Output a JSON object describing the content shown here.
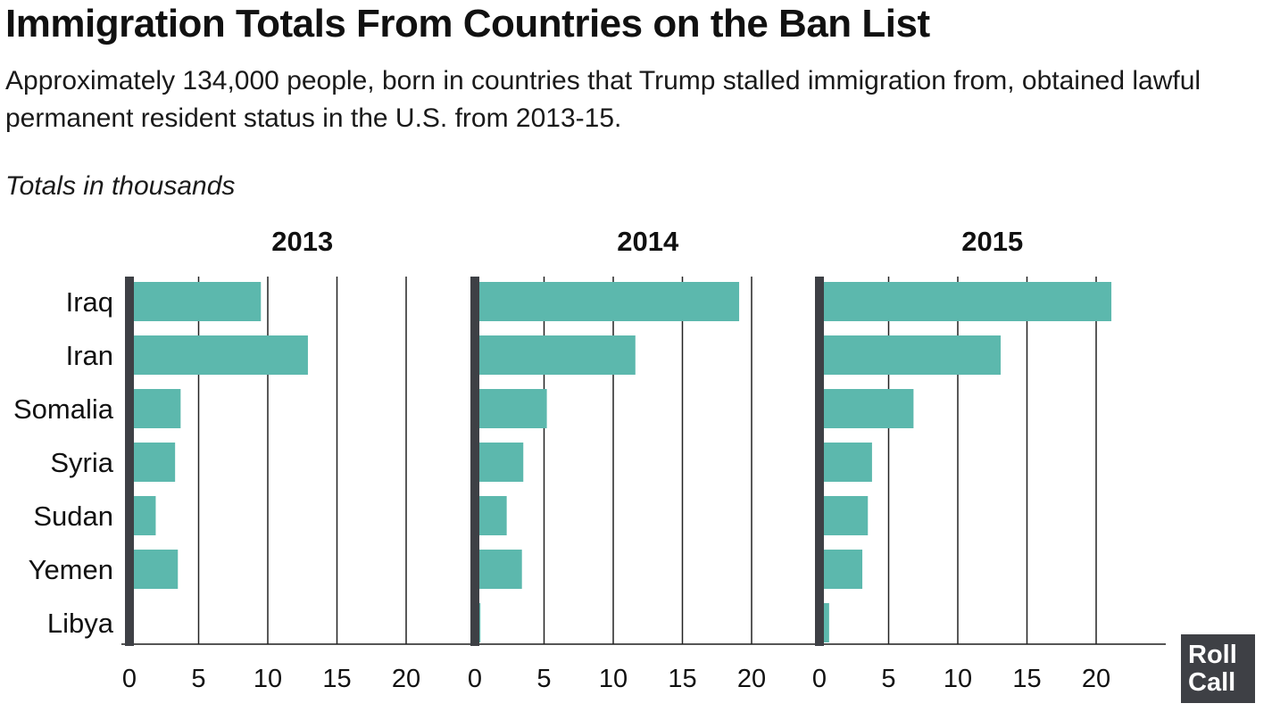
{
  "title": "Immigration Totals From Countries on the Ban List",
  "subtitle": "Approximately 134,000 people, born in countries that Trump stalled immigration from, obtained lawful permanent resident status in the U.S. from 2013-15.",
  "units_label": "Totals in thousands",
  "logo": {
    "line1": "Roll",
    "line2": "Call"
  },
  "colors": {
    "bar": "#5cb8ad",
    "axis": "#3e4045",
    "grid": "#222222",
    "text": "#111111"
  },
  "chart_data": {
    "type": "bar",
    "orientation": "horizontal",
    "units": "thousands",
    "categories": [
      "Iraq",
      "Iran",
      "Somalia",
      "Syria",
      "Sudan",
      "Yemen",
      "Libya"
    ],
    "xticks": [
      0,
      5,
      10,
      15,
      20
    ],
    "xlim": [
      0,
      25
    ],
    "panels": [
      {
        "title": "2013",
        "values": [
          9.5,
          12.9,
          3.7,
          3.3,
          1.9,
          3.5,
          0.2
        ]
      },
      {
        "title": "2014",
        "values": [
          19.1,
          11.6,
          5.2,
          3.5,
          2.3,
          3.4,
          0.4
        ]
      },
      {
        "title": "2015",
        "values": [
          21.1,
          13.1,
          6.8,
          3.8,
          3.5,
          3.1,
          0.7
        ]
      }
    ]
  }
}
